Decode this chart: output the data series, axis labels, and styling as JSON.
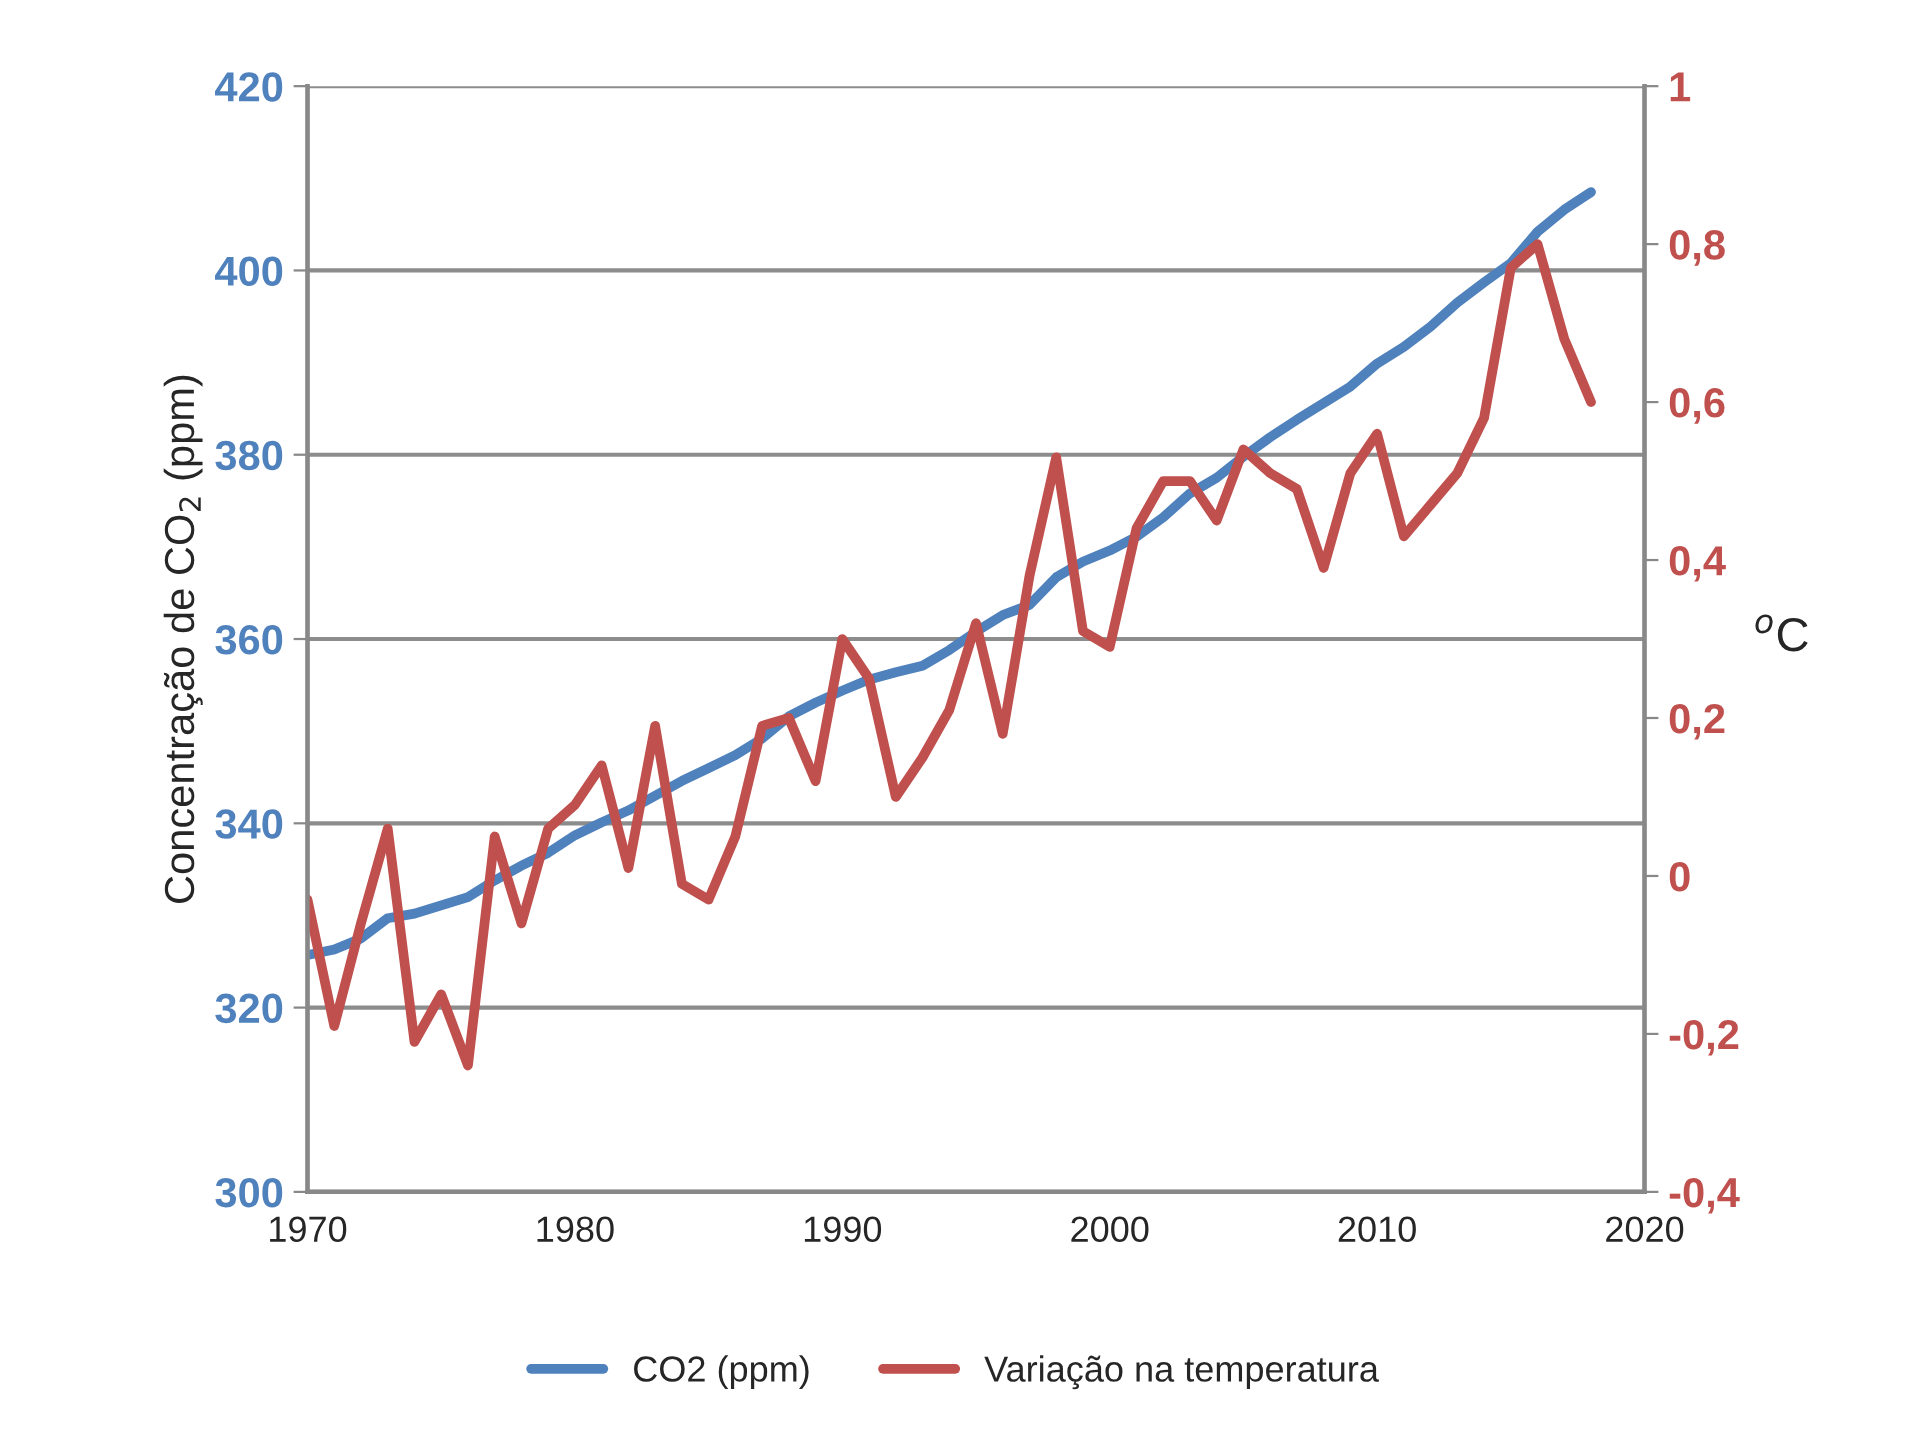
{
  "chart_data": {
    "type": "line",
    "ylabel": "Concentração de CO$_{2}$ (ppm)",
    "y2label": "$^{o}$C",
    "x": [
      1970,
      1971,
      1972,
      1973,
      1974,
      1975,
      1976,
      1977,
      1978,
      1979,
      1980,
      1981,
      1982,
      1983,
      1984,
      1985,
      1986,
      1987,
      1988,
      1989,
      1990,
      1991,
      1992,
      1993,
      1994,
      1995,
      1996,
      1997,
      1998,
      1999,
      2000,
      2001,
      2002,
      2003,
      2004,
      2005,
      2006,
      2007,
      2008,
      2009,
      2010,
      2011,
      2012,
      2013,
      2014,
      2015,
      2016,
      2017,
      2018
    ],
    "series": [
      {
        "name": "CO2 (ppm)",
        "color": "#4f81bd",
        "values": [
          325.7,
          326.3,
          327.5,
          329.7,
          330.2,
          331.1,
          332.0,
          333.8,
          335.4,
          336.8,
          338.7,
          340.1,
          341.4,
          343.0,
          344.6,
          346.0,
          347.4,
          349.2,
          351.6,
          353.1,
          354.4,
          355.6,
          356.4,
          357.1,
          358.8,
          360.8,
          362.6,
          363.7,
          366.7,
          368.4,
          369.6,
          371.1,
          373.2,
          375.8,
          377.5,
          379.8,
          381.9,
          383.8,
          385.6,
          387.4,
          389.9,
          391.7,
          393.9,
          396.5,
          398.7,
          400.8,
          404.2,
          406.6,
          408.5
        ]
      },
      {
        "name": "Variação na temperatura",
        "color": "#c0504d",
        "axis": "y2",
        "values": [
          -0.03,
          -0.19,
          -0.06,
          0.06,
          -0.21,
          -0.15,
          -0.24,
          0.05,
          -0.06,
          0.06,
          0.09,
          0.14,
          0.01,
          0.19,
          -0.01,
          -0.03,
          0.05,
          0.19,
          0.2,
          0.12,
          0.3,
          0.25,
          0.1,
          0.15,
          0.21,
          0.32,
          0.18,
          0.38,
          0.53,
          0.31,
          0.29,
          0.44,
          0.5,
          0.5,
          0.45,
          0.54,
          0.51,
          0.49,
          0.39,
          0.51,
          0.56,
          0.43,
          0.47,
          0.51,
          0.58,
          0.77,
          0.8,
          0.68,
          0.6
        ]
      }
    ],
    "xlim": [
      1970,
      2020
    ],
    "xticks": [
      1970,
      1980,
      1990,
      2000,
      2010,
      2020
    ],
    "ylim": [
      300,
      420
    ],
    "yticks": [
      300,
      320,
      340,
      360,
      380,
      400,
      420
    ],
    "y2lim": [
      -0.4,
      1
    ],
    "y2ticks": [
      {
        "value": -0.4,
        "label": "-0,4"
      },
      {
        "value": -0.2,
        "label": "-0,2"
      },
      0,
      {
        "value": 0.2,
        "label": "0,2"
      },
      {
        "value": 0.4,
        "label": "0,4"
      },
      {
        "value": 0.6,
        "label": "0,6"
      },
      {
        "value": 0.8,
        "label": "0,8"
      },
      1
    ],
    "grid": "y",
    "legend": "bottom",
    "marker": "none",
    "line_style": "solid"
  }
}
